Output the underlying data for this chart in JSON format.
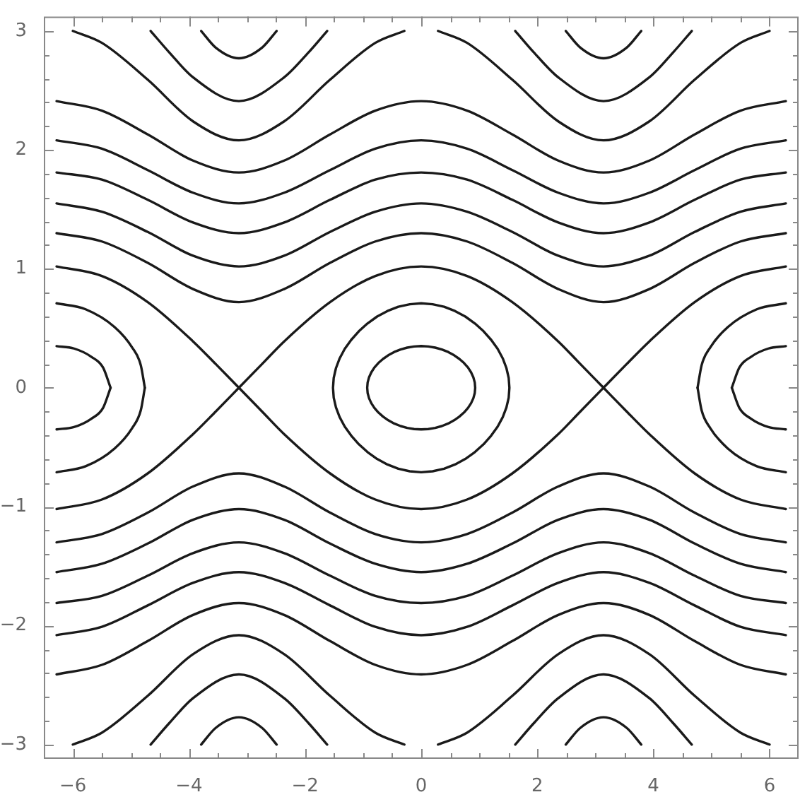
{
  "chart_data": {
    "type": "line",
    "marker": "none",
    "line_style": "solid",
    "xlim": [
      -6.5,
      6.5
    ],
    "ylim": [
      -3.12,
      3.12
    ],
    "xticks": [
      {
        "value": -6,
        "label": "−6"
      },
      {
        "value": -5.5,
        "label": null
      },
      {
        "value": -5,
        "label": null
      },
      {
        "value": -4.5,
        "label": null
      },
      {
        "value": -4,
        "label": "−4"
      },
      {
        "value": -3.5,
        "label": null
      },
      {
        "value": -3,
        "label": null
      },
      {
        "value": -2.5,
        "label": null
      },
      {
        "value": -2,
        "label": "−2"
      },
      {
        "value": -1.5,
        "label": null
      },
      {
        "value": -1,
        "label": null
      },
      {
        "value": -0.5,
        "label": null
      },
      0,
      {
        "value": 0.5,
        "label": null
      },
      {
        "value": 1,
        "label": null
      },
      {
        "value": 1.5,
        "label": null
      },
      2,
      {
        "value": 2.5,
        "label": null
      },
      {
        "value": 3,
        "label": null
      },
      {
        "value": 3.5,
        "label": null
      },
      4,
      {
        "value": 4.5,
        "label": null
      },
      {
        "value": 5,
        "label": null
      },
      {
        "value": 5.5,
        "label": null
      },
      6
    ],
    "yticks": [
      {
        "value": -3,
        "label": "−3"
      },
      {
        "value": -2.8,
        "label": null
      },
      {
        "value": -2.6,
        "label": null
      },
      {
        "value": -2.4,
        "label": null
      },
      {
        "value": -2.2,
        "label": null
      },
      {
        "value": -2,
        "label": "−2"
      },
      {
        "value": -1.8,
        "label": null
      },
      {
        "value": -1.6,
        "label": null
      },
      {
        "value": -1.4,
        "label": null
      },
      {
        "value": -1.2,
        "label": null
      },
      {
        "value": -1,
        "label": "−1"
      },
      {
        "value": -0.8,
        "label": null
      },
      {
        "value": -0.6,
        "label": null
      },
      {
        "value": -0.4,
        "label": null
      },
      {
        "value": -0.2,
        "label": null
      },
      0,
      {
        "value": 0.2,
        "label": null
      },
      {
        "value": 0.4,
        "label": null
      },
      {
        "value": 0.6,
        "label": null
      },
      {
        "value": 0.8,
        "label": null
      },
      1,
      {
        "value": 1.2,
        "label": null
      },
      {
        "value": 1.4,
        "label": null
      },
      {
        "value": 1.6,
        "label": null
      },
      {
        "value": 1.8,
        "label": null
      },
      2,
      {
        "value": 2.2,
        "label": null
      },
      {
        "value": 2.4,
        "label": null
      },
      {
        "value": 2.6,
        "label": null
      },
      {
        "value": 2.8,
        "label": null
      },
      3
    ],
    "series": [
      {
        "color": "#1a1a1a",
        "x": [
          -6.28,
          -5.5,
          -4.71,
          -3.93,
          -3.54,
          -3.14,
          -2.74,
          -2.36,
          -1.57,
          -0.79,
          0,
          0.79,
          1.57,
          2.36,
          2.74,
          3.14,
          3.54,
          3.93,
          4.71,
          5.5,
          6.28
        ],
        "values": [
          1.02,
          0.94,
          0.72,
          0.39,
          0.2,
          0,
          -0.2,
          -0.39,
          -0.72,
          -0.94,
          -1.02,
          -0.94,
          -0.72,
          -0.39,
          -0.2,
          0,
          0.2,
          0.39,
          0.72,
          0.94,
          1.02
        ]
      },
      {
        "color": "#1a1a1a",
        "x": [
          -6.28,
          -5.5,
          -4.71,
          -3.93,
          -3.54,
          -3.14,
          -2.74,
          -2.36,
          -1.57,
          -0.79,
          0,
          0.79,
          1.57,
          2.36,
          2.74,
          3.14,
          3.54,
          3.93,
          4.71,
          5.5,
          6.28
        ],
        "values": [
          -1.02,
          -0.94,
          -0.72,
          -0.39,
          -0.2,
          0,
          0.2,
          0.39,
          0.72,
          0.94,
          1.02,
          0.94,
          0.72,
          0.39,
          0.2,
          0,
          -0.2,
          -0.39,
          -0.72,
          -0.94,
          -1.02
        ]
      },
      {
        "color": "#1a1a1a",
        "x": [
          -6.28,
          -5.5,
          -4.71,
          -3.93,
          -3.14,
          -2.36,
          -1.57,
          -0.79,
          0,
          0.79,
          1.57,
          2.36,
          3.14,
          3.93,
          4.71,
          5.5,
          6.28
        ],
        "values": [
          1.3,
          1.23,
          1.05,
          0.83,
          0.72,
          0.83,
          1.05,
          1.23,
          1.3,
          1.23,
          1.05,
          0.83,
          0.72,
          0.83,
          1.05,
          1.23,
          1.3
        ]
      },
      {
        "color": "#1a1a1a",
        "x": [
          -6.28,
          -5.5,
          -4.71,
          -3.93,
          -3.14,
          -2.36,
          -1.57,
          -0.79,
          0,
          0.79,
          1.57,
          2.36,
          3.14,
          3.93,
          4.71,
          5.5,
          6.28
        ],
        "values": [
          1.55,
          1.48,
          1.31,
          1.11,
          1.02,
          1.11,
          1.31,
          1.48,
          1.55,
          1.48,
          1.31,
          1.11,
          1.02,
          1.11,
          1.31,
          1.48,
          1.55
        ]
      },
      {
        "color": "#1a1a1a",
        "x": [
          -6.28,
          -5.5,
          -4.71,
          -3.93,
          -3.14,
          -2.36,
          -1.57,
          -0.79,
          0,
          0.79,
          1.57,
          2.36,
          3.14,
          3.93,
          4.71,
          5.5,
          6.28
        ],
        "values": [
          1.81,
          1.75,
          1.58,
          1.39,
          1.3,
          1.39,
          1.58,
          1.75,
          1.81,
          1.75,
          1.58,
          1.39,
          1.3,
          1.39,
          1.58,
          1.75,
          1.81
        ]
      },
      {
        "color": "#1a1a1a",
        "x": [
          -6.28,
          -5.5,
          -4.71,
          -3.93,
          -3.14,
          -2.36,
          -1.57,
          -0.79,
          0,
          0.79,
          1.57,
          2.36,
          3.14,
          3.93,
          4.71,
          5.5,
          6.28
        ],
        "values": [
          2.08,
          2.01,
          1.83,
          1.64,
          1.55,
          1.64,
          1.83,
          2.01,
          2.08,
          2.01,
          1.83,
          1.64,
          1.55,
          1.64,
          1.83,
          2.01,
          2.08
        ]
      },
      {
        "color": "#1a1a1a",
        "x": [
          -6.28,
          -5.5,
          -4.71,
          -3.93,
          -3.14,
          -2.36,
          -1.57,
          -0.79,
          0,
          0.79,
          1.57,
          2.36,
          3.14,
          3.93,
          4.71,
          5.5,
          6.28
        ],
        "values": [
          2.41,
          2.33,
          2.13,
          1.91,
          1.81,
          1.91,
          2.13,
          2.33,
          2.41,
          2.33,
          2.13,
          1.91,
          1.81,
          1.91,
          2.13,
          2.33,
          2.41
        ]
      },
      {
        "color": "#1a1a1a",
        "x": [
          -6.28,
          -5.5,
          -4.71,
          -3.93,
          -3.14,
          -2.36,
          -1.57,
          -0.79,
          0,
          0.79,
          1.57,
          2.36,
          3.14,
          3.93,
          4.71,
          5.5,
          6.28
        ],
        "values": [
          -1.3,
          -1.23,
          -1.05,
          -0.83,
          -0.72,
          -0.83,
          -1.05,
          -1.23,
          -1.3,
          -1.23,
          -1.05,
          -0.83,
          -0.72,
          -0.83,
          -1.05,
          -1.23,
          -1.3
        ]
      },
      {
        "color": "#1a1a1a",
        "x": [
          -6.28,
          -5.5,
          -4.71,
          -3.93,
          -3.14,
          -2.36,
          -1.57,
          -0.79,
          0,
          0.79,
          1.57,
          2.36,
          3.14,
          3.93,
          4.71,
          5.5,
          6.28
        ],
        "values": [
          -1.55,
          -1.48,
          -1.31,
          -1.11,
          -1.02,
          -1.11,
          -1.31,
          -1.48,
          -1.55,
          -1.48,
          -1.31,
          -1.11,
          -1.02,
          -1.11,
          -1.31,
          -1.48,
          -1.55
        ]
      },
      {
        "color": "#1a1a1a",
        "x": [
          -6.28,
          -5.5,
          -4.71,
          -3.93,
          -3.14,
          -2.36,
          -1.57,
          -0.79,
          0,
          0.79,
          1.57,
          2.36,
          3.14,
          3.93,
          4.71,
          5.5,
          6.28
        ],
        "values": [
          -1.81,
          -1.75,
          -1.58,
          -1.39,
          -1.3,
          -1.39,
          -1.58,
          -1.75,
          -1.81,
          -1.75,
          -1.58,
          -1.39,
          -1.3,
          -1.39,
          -1.58,
          -1.75,
          -1.81
        ]
      },
      {
        "color": "#1a1a1a",
        "x": [
          -6.28,
          -5.5,
          -4.71,
          -3.93,
          -3.14,
          -2.36,
          -1.57,
          -0.79,
          0,
          0.79,
          1.57,
          2.36,
          3.14,
          3.93,
          4.71,
          5.5,
          6.28
        ],
        "values": [
          -2.08,
          -2.01,
          -1.83,
          -1.64,
          -1.55,
          -1.64,
          -1.83,
          -2.01,
          -2.08,
          -2.01,
          -1.83,
          -1.64,
          -1.55,
          -1.64,
          -1.83,
          -2.01,
          -2.08
        ]
      },
      {
        "color": "#1a1a1a",
        "x": [
          -6.28,
          -5.5,
          -4.71,
          -3.93,
          -3.14,
          -2.36,
          -1.57,
          -0.79,
          0,
          0.79,
          1.57,
          2.36,
          3.14,
          3.93,
          4.71,
          5.5,
          6.28
        ],
        "values": [
          -2.41,
          -2.33,
          -2.13,
          -1.91,
          -1.81,
          -1.91,
          -2.13,
          -2.33,
          -2.41,
          -2.33,
          -2.13,
          -1.91,
          -1.81,
          -1.91,
          -2.13,
          -2.33,
          -2.41
        ]
      },
      {
        "color": "#1a1a1a",
        "x": [
          -6.0,
          -5.5,
          -4.71,
          -3.93,
          -3.14,
          -2.36,
          -1.57,
          -0.79,
          -0.29
        ],
        "values": [
          3,
          2.9,
          2.59,
          2.24,
          2.08,
          2.24,
          2.59,
          2.9,
          3
        ]
      },
      {
        "color": "#1a1a1a",
        "x": [
          0.29,
          0.79,
          1.57,
          2.36,
          3.14,
          3.93,
          4.71,
          5.5,
          6.0
        ],
        "values": [
          3,
          2.9,
          2.59,
          2.24,
          2.08,
          2.24,
          2.59,
          2.9,
          3
        ]
      },
      {
        "color": "#1a1a1a",
        "x": [
          -6.0,
          -5.5,
          -4.71,
          -3.93,
          -3.14,
          -2.36,
          -1.57,
          -0.79,
          -0.29
        ],
        "values": [
          -3,
          -2.9,
          -2.59,
          -2.24,
          -2.08,
          -2.24,
          -2.59,
          -2.9,
          -3
        ]
      },
      {
        "color": "#1a1a1a",
        "x": [
          0.29,
          0.79,
          1.57,
          2.36,
          3.14,
          3.93,
          4.71,
          5.5,
          6.0
        ],
        "values": [
          -3,
          -2.9,
          -2.59,
          -2.24,
          -2.08,
          -2.24,
          -2.59,
          -2.9,
          -3
        ]
      },
      {
        "color": "#1a1a1a",
        "x": [
          -4.66,
          -4.34,
          -3.93,
          -3.14,
          -2.36,
          -1.94,
          -1.62
        ],
        "values": [
          3,
          2.82,
          2.61,
          2.41,
          2.61,
          2.82,
          3
        ]
      },
      {
        "color": "#1a1a1a",
        "x": [
          1.62,
          1.94,
          2.36,
          3.14,
          3.93,
          4.34,
          4.66
        ],
        "values": [
          3,
          2.82,
          2.61,
          2.41,
          2.61,
          2.82,
          3
        ]
      },
      {
        "color": "#1a1a1a",
        "x": [
          -4.66,
          -4.34,
          -3.93,
          -3.14,
          -2.36,
          -1.94,
          -1.62
        ],
        "values": [
          -3,
          -2.82,
          -2.61,
          -2.41,
          -2.61,
          -2.82,
          -3
        ]
      },
      {
        "color": "#1a1a1a",
        "x": [
          1.62,
          1.94,
          2.36,
          3.14,
          3.93,
          4.34,
          4.66
        ],
        "values": [
          -3,
          -2.82,
          -2.61,
          -2.41,
          -2.61,
          -2.82,
          -3
        ]
      },
      {
        "color": "#1a1a1a",
        "x": [
          -3.79,
          -3.54,
          -3.14,
          -2.74,
          -2.49
        ],
        "values": [
          3,
          2.86,
          2.77,
          2.86,
          3
        ]
      },
      {
        "color": "#1a1a1a",
        "x": [
          2.49,
          2.74,
          3.14,
          3.54,
          3.79
        ],
        "values": [
          3,
          2.86,
          2.77,
          2.86,
          3
        ]
      },
      {
        "color": "#1a1a1a",
        "x": [
          -3.79,
          -3.54,
          -3.14,
          -2.74,
          -2.49
        ],
        "values": [
          -3,
          -2.86,
          -2.77,
          -2.86,
          -3
        ]
      },
      {
        "color": "#1a1a1a",
        "x": [
          2.49,
          2.74,
          3.14,
          3.54,
          3.79
        ],
        "values": [
          -3,
          -2.86,
          -2.77,
          -2.86,
          -3
        ]
      },
      {
        "color": "#1a1a1a",
        "x": [
          4.76,
          4.83,
          4.98,
          5.28,
          5.78,
          6.28
        ],
        "values": [
          0,
          0.19,
          0.34,
          0.51,
          0.66,
          0.71
        ]
      },
      {
        "color": "#1a1a1a",
        "x": [
          4.76,
          4.83,
          4.98,
          5.28,
          5.78,
          6.28
        ],
        "values": [
          0,
          -0.19,
          -0.34,
          -0.51,
          -0.66,
          -0.71
        ]
      },
      {
        "color": "#1a1a1a",
        "x": [
          -6.28,
          -5.78,
          -5.28,
          -4.98,
          -4.83,
          -4.76
        ],
        "values": [
          0.71,
          0.66,
          0.51,
          0.34,
          0.19,
          0
        ]
      },
      {
        "color": "#1a1a1a",
        "x": [
          -6.28,
          -5.78,
          -5.28,
          -4.98,
          -4.83,
          -4.76
        ],
        "values": [
          -0.71,
          -0.66,
          -0.51,
          -0.34,
          -0.19,
          0
        ]
      },
      {
        "color": "#1a1a1a",
        "x": [
          5.35,
          5.48,
          5.68,
          5.98,
          6.28
        ],
        "values": [
          0,
          0.17,
          0.26,
          0.33,
          0.35
        ]
      },
      {
        "color": "#1a1a1a",
        "x": [
          5.35,
          5.48,
          5.68,
          5.98,
          6.28
        ],
        "values": [
          0,
          -0.17,
          -0.26,
          -0.33,
          -0.35
        ]
      },
      {
        "color": "#1a1a1a",
        "x": [
          -6.28,
          -5.98,
          -5.68,
          -5.48,
          -5.35
        ],
        "values": [
          0.35,
          0.33,
          0.26,
          0.17,
          0
        ]
      },
      {
        "color": "#1a1a1a",
        "x": [
          -6.28,
          -5.98,
          -5.68,
          -5.48,
          -5.35
        ],
        "values": [
          -0.35,
          -0.33,
          -0.26,
          -0.17,
          0
        ]
      }
    ]
  }
}
